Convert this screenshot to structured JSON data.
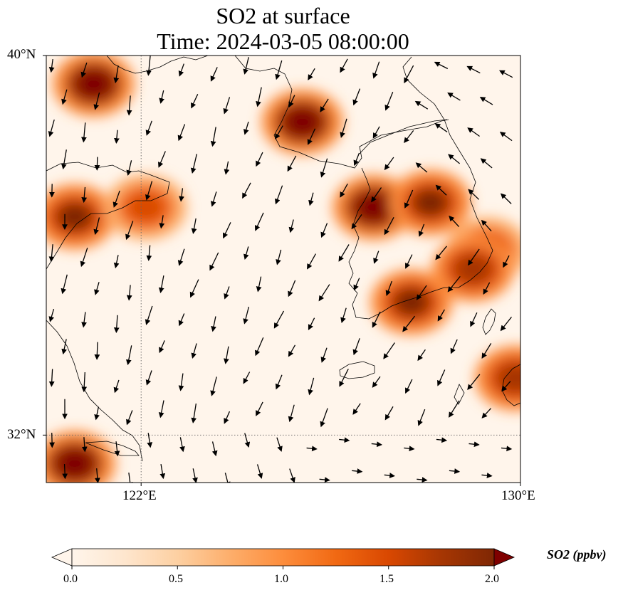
{
  "title": {
    "line1": "SO2 at surface",
    "line2": "Time: 2024-03-05 08:00:00"
  },
  "map": {
    "lon_range": [
      120,
      130
    ],
    "lat_range": [
      31,
      40
    ],
    "lat_ticks": [
      {
        "value": 40,
        "label": "40°N"
      },
      {
        "value": 32,
        "label": "32°N"
      }
    ],
    "lon_ticks": [
      {
        "value": 122,
        "label": "122°E"
      },
      {
        "value": 130,
        "label": "130°E"
      }
    ],
    "gridlines": "dotted",
    "background_color": "#fff5eb",
    "hotspots": [
      {
        "region": "north-china-coast",
        "lon": 121.0,
        "lat": 39.4,
        "so2_ppbv": 2.0
      },
      {
        "region": "liaodong",
        "lon": 125.4,
        "lat": 38.6,
        "so2_ppbv": 2.0
      },
      {
        "region": "shandong",
        "lon": 120.6,
        "lat": 36.6,
        "so2_ppbv": 1.9
      },
      {
        "region": "shandong-east",
        "lon": 122.1,
        "lat": 36.8,
        "so2_ppbv": 1.4
      },
      {
        "region": "seoul",
        "lon": 126.9,
        "lat": 36.8,
        "so2_ppbv": 2.0
      },
      {
        "region": "central-korea",
        "lon": 128.1,
        "lat": 36.9,
        "so2_ppbv": 1.9
      },
      {
        "region": "gangneung-coast",
        "lon": 129.3,
        "lat": 35.9,
        "so2_ppbv": 1.5
      },
      {
        "region": "pohang",
        "lon": 129.0,
        "lat": 35.5,
        "so2_ppbv": 1.8
      },
      {
        "region": "yeosu",
        "lon": 127.7,
        "lat": 34.8,
        "so2_ppbv": 1.9
      },
      {
        "region": "busan-tsushima",
        "lon": 129.9,
        "lat": 33.2,
        "so2_ppbv": 1.8
      },
      {
        "region": "shanghai",
        "lon": 120.6,
        "lat": 31.4,
        "so2_ppbv": 2.0
      }
    ]
  },
  "colorbar": {
    "min": 0.0,
    "max": 2.0,
    "ticks": [
      "0.0",
      "0.5",
      "1.0",
      "1.5",
      "2.0"
    ],
    "label": "SO2 (ppbv)",
    "colormap": [
      "#fff5eb",
      "#fee6ce",
      "#fdd0a2",
      "#fdae6b",
      "#fd8d3c",
      "#f16913",
      "#d94801",
      "#a63603",
      "#7f2704"
    ],
    "top_color": "#7f0000"
  }
}
